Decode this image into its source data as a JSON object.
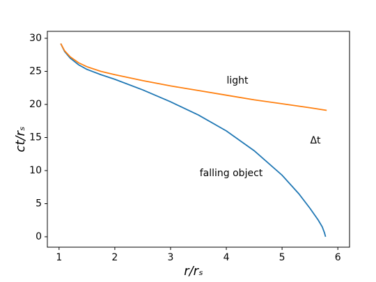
{
  "chart_data": {
    "type": "line",
    "x_label": "r/rₛ",
    "y_label": "ct/rₛ",
    "annotations": [
      "Δt"
    ],
    "series": [
      {
        "name": "falling object",
        "color": "#1f77b4",
        "x": [
          1.03,
          1.1,
          1.2,
          1.35,
          1.5,
          1.75,
          2,
          2.5,
          3,
          3.5,
          4,
          4.5,
          5,
          5.3,
          5.5,
          5.65,
          5.72,
          5.76,
          5.78
        ],
        "values": [
          29.2,
          28.0,
          27.0,
          26.0,
          25.3,
          24.5,
          23.8,
          22.2,
          20.4,
          18.4,
          16.0,
          13.0,
          9.3,
          6.5,
          4.3,
          2.5,
          1.5,
          0.6,
          0
        ]
      },
      {
        "name": "light",
        "color": "#ff7f0e",
        "x": [
          1.03,
          1.1,
          1.2,
          1.35,
          1.5,
          1.75,
          2,
          2.5,
          3,
          3.5,
          4,
          4.5,
          5,
          5.5,
          5.8
        ],
        "values": [
          29.2,
          28.1,
          27.2,
          26.3,
          25.7,
          25.0,
          24.5,
          23.6,
          22.8,
          22.1,
          21.4,
          20.7,
          20.1,
          19.5,
          19.1
        ]
      }
    ],
    "xlim": [
      0.79,
      6.21
    ],
    "ylim": [
      -1.58,
      31.05
    ],
    "xticks": [
      1,
      2,
      3,
      4,
      5,
      6
    ],
    "yticks": [
      0,
      5,
      10,
      15,
      20,
      25,
      30
    ]
  }
}
